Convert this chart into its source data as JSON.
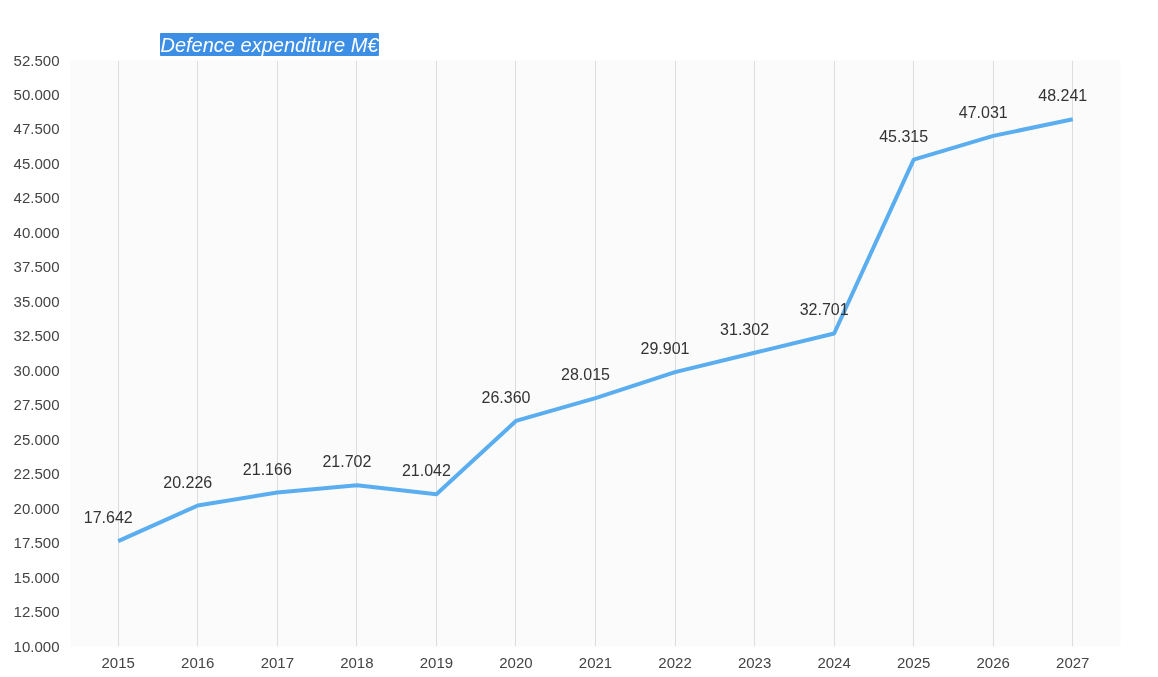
{
  "chart_data": {
    "type": "line",
    "title": "Defence expenditure M€",
    "categories": [
      "2015",
      "2016",
      "2017",
      "2018",
      "2019",
      "2020",
      "2021",
      "2022",
      "2023",
      "2024",
      "2025",
      "2026",
      "2027"
    ],
    "series": [
      {
        "color": "#5aaef0",
        "values": [
          17642,
          20226,
          21166,
          21702,
          21042,
          26360,
          28015,
          29901,
          31302,
          32701,
          45315,
          47031,
          48241
        ],
        "value_labels": [
          "17.642",
          "20.226",
          "21.166",
          "21.702",
          "21.042",
          "26.360",
          "28.015",
          "29.901",
          "31.302",
          "32.701",
          "45.315",
          "47.031",
          "48.241"
        ]
      }
    ],
    "ylim": [
      10000,
      52500
    ],
    "yticks": [
      {
        "value": 10000,
        "label": "10.000"
      },
      {
        "value": 12500,
        "label": "12.500"
      },
      {
        "value": 15000,
        "label": "15.000"
      },
      {
        "value": 17500,
        "label": "17.500"
      },
      {
        "value": 20000,
        "label": "20.000"
      },
      {
        "value": 22500,
        "label": "22.500"
      },
      {
        "value": 25000,
        "label": "25.000"
      },
      {
        "value": 27500,
        "label": "27.500"
      },
      {
        "value": 30000,
        "label": "30.000"
      },
      {
        "value": 32500,
        "label": "32.500"
      },
      {
        "value": 35000,
        "label": "35.000"
      },
      {
        "value": 37500,
        "label": "37.500"
      },
      {
        "value": 40000,
        "label": "40.000"
      },
      {
        "value": 42500,
        "label": "42.500"
      },
      {
        "value": 45000,
        "label": "45.000"
      },
      {
        "value": 47500,
        "label": "47.500"
      },
      {
        "value": 50000,
        "label": "50.000"
      },
      {
        "value": 52500,
        "label": "52.500"
      }
    ],
    "grid": "x",
    "marker": "none",
    "line_style": "solid"
  }
}
